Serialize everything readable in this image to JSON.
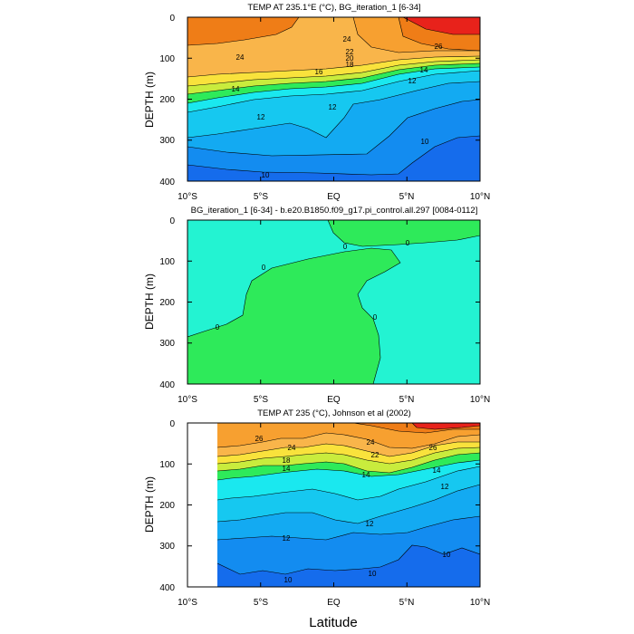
{
  "figure": {
    "xlabel": "Latitude"
  },
  "colors": {
    "red": "#e8221b",
    "orange_dark": "#ef7d17",
    "orange": "#f7a030",
    "orange_light": "#f9b54a",
    "yellow": "#f9e23c",
    "yellow_green": "#c9ec3d",
    "green": "#2eea5a",
    "cyan_green": "#20f0d0",
    "cyan": "#1ae8ef",
    "sky": "#16c8f0",
    "blue_light": "#13aaf2",
    "blue": "#138cf0",
    "blue_deep": "#156cec",
    "diff_pos": "#2eea5a",
    "diff_neg": "#23f3d2"
  },
  "chart_data": [
    {
      "type": "contour",
      "title": "TEMP AT 235.1°E (°C), BG_iteration_1 [6-34]",
      "xlabel": "",
      "ylabel": "DEPTH (m)",
      "xlim": [
        -10,
        10
      ],
      "ylim": [
        400,
        0
      ],
      "xticks": [
        "10°S",
        "5°S",
        "EQ",
        "5°N",
        "10°N"
      ],
      "yticks": [
        "0",
        "100",
        "200",
        "300",
        "400"
      ],
      "contour_labels": [
        "24",
        "26",
        "24",
        "22",
        "20",
        "18",
        "16",
        "14",
        "12",
        "14",
        "12",
        "12",
        "10",
        "10"
      ]
    },
    {
      "type": "contour",
      "title": "BG_iteration_1 [6-34] - b.e20.B1850.f09_g17.pi_control.all.297 [0084-0112]",
      "xlabel": "",
      "ylabel": "DEPTH (m)",
      "xlim": [
        -10,
        10
      ],
      "ylim": [
        400,
        0
      ],
      "xticks": [
        "10°S",
        "5°S",
        "EQ",
        "5°N",
        "10°N"
      ],
      "yticks": [
        "0",
        "100",
        "200",
        "300",
        "400"
      ],
      "contour_labels": [
        "0",
        "0",
        "0",
        "0",
        "0"
      ]
    },
    {
      "type": "contour",
      "title": "TEMP AT 235 (°C), Johnson et al (2002)",
      "xlabel": "Latitude",
      "ylabel": "DEPTH (m)",
      "xlim": [
        -10,
        10
      ],
      "ylim": [
        400,
        0
      ],
      "xticks": [
        "10°S",
        "5°S",
        "EQ",
        "5°N",
        "10°N"
      ],
      "yticks": [
        "0",
        "100",
        "200",
        "300",
        "400"
      ],
      "data_xrange": [
        -8,
        10
      ],
      "contour_labels": [
        "26",
        "24",
        "24",
        "22",
        "18",
        "14",
        "14",
        "26",
        "14",
        "12",
        "12",
        "12",
        "10",
        "10",
        "10"
      ]
    }
  ]
}
